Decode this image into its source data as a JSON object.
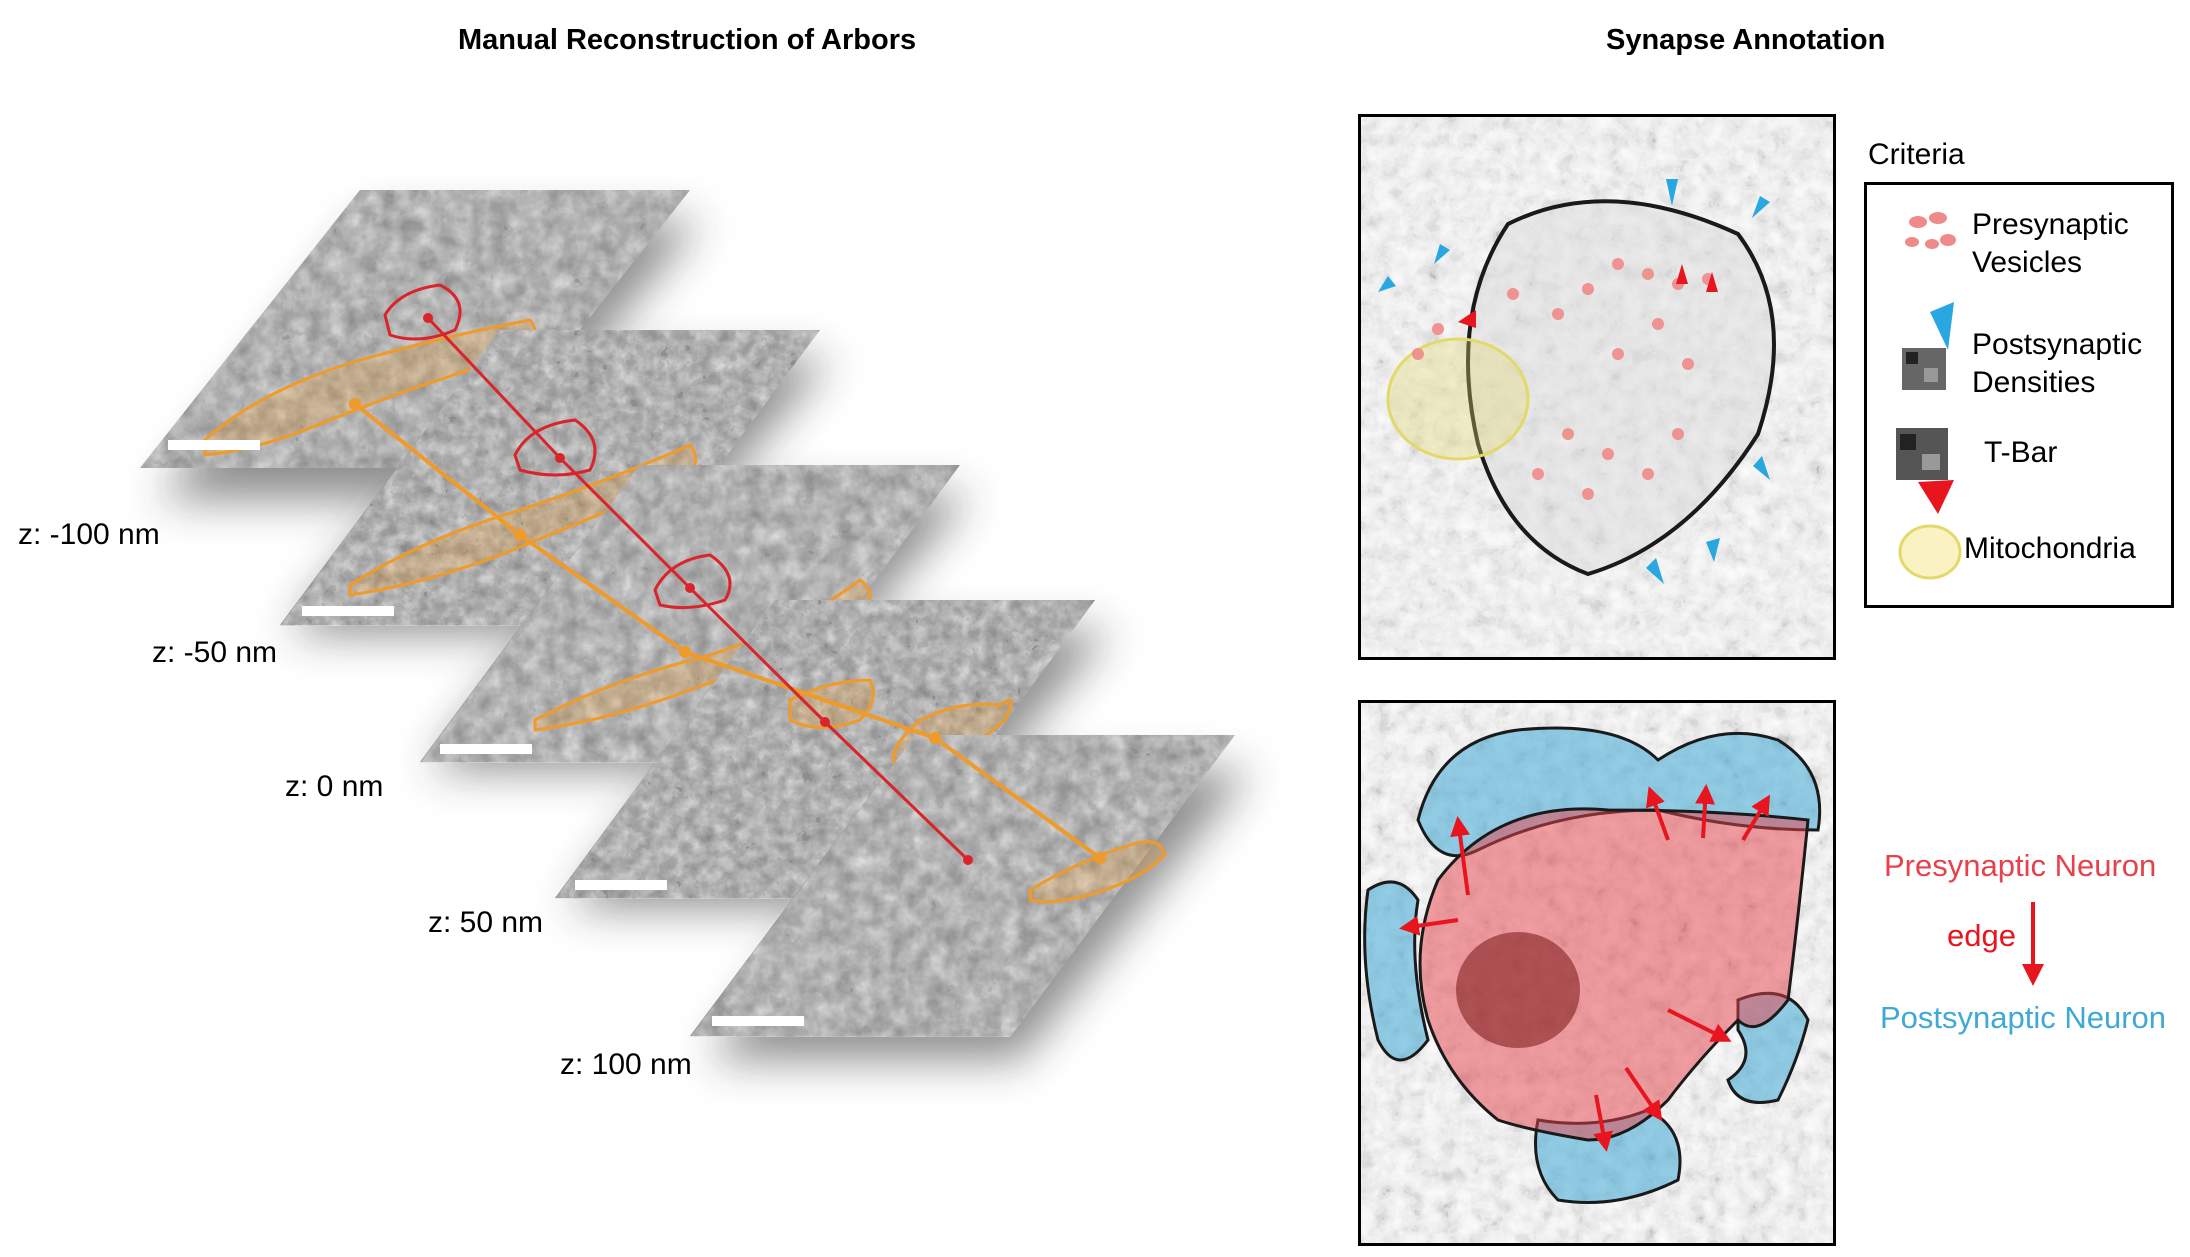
{
  "left_panel": {
    "title": "Manual Reconstruction of Arbors",
    "slices": [
      {
        "z_label": "z: -100 nm"
      },
      {
        "z_label": "z: -50 nm"
      },
      {
        "z_label": "z: 0 nm"
      },
      {
        "z_label": "z: 50 nm"
      },
      {
        "z_label": "z: 100 nm"
      }
    ],
    "colors": {
      "arbor": "#f09a2a",
      "synapse": "#d9242c"
    }
  },
  "right_panel": {
    "title": "Synapse Annotation",
    "criteria": {
      "heading": "Criteria",
      "presynaptic_vesicles": [
        "Presynaptic",
        "Vesicles"
      ],
      "postsynaptic_densities": [
        "Postsynaptic",
        "Densities"
      ],
      "t_bar": "T-Bar",
      "mitochondria": "Mitochondria"
    },
    "legend": {
      "presynaptic": "Presynaptic Neuron",
      "edge": "edge",
      "postsynaptic": "Postsynaptic Neuron"
    },
    "colors": {
      "presynaptic": "#e8414b",
      "postsynaptic": "#3fa9d6",
      "mitochondria": "#e3d96a",
      "vesicle": "#f08a8a"
    }
  }
}
